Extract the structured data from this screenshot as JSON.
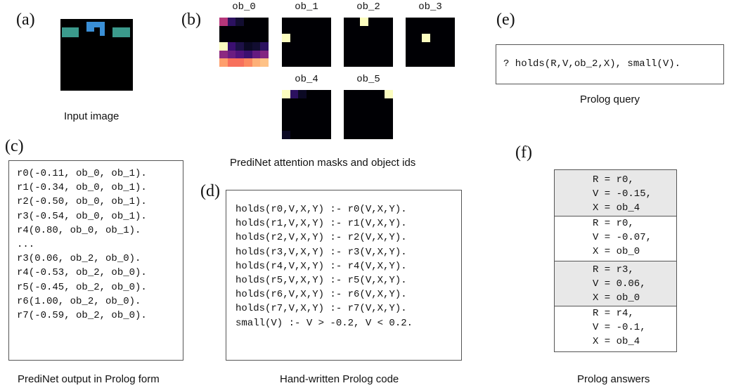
{
  "panels": {
    "a": {
      "label": "(a)",
      "caption": "Input image"
    },
    "b": {
      "label": "(b)",
      "caption": "PrediNet attention masks and object ids",
      "objects": [
        "ob_0",
        "ob_1",
        "ob_2",
        "ob_3",
        "ob_4",
        "ob_5"
      ]
    },
    "c": {
      "label": "(c)",
      "caption": "PrediNet output in Prolog form",
      "lines": [
        "r0(-0.11, ob_0, ob_1).",
        "r1(-0.34, ob_0, ob_1).",
        "r2(-0.50, ob_0, ob_1).",
        "r3(-0.54, ob_0, ob_1).",
        "r4(0.80, ob_0, ob_1).",
        "",
        "...",
        "",
        "r3(0.06, ob_2, ob_0).",
        "r4(-0.53, ob_2, ob_0).",
        "r5(-0.45, ob_2, ob_0).",
        "r6(1.00, ob_2, ob_0).",
        "r7(-0.59, ob_2, ob_0)."
      ]
    },
    "d": {
      "label": "(d)",
      "caption": "Hand-written Prolog code",
      "lines": [
        "holds(r0,V,X,Y) :- r0(V,X,Y).",
        "holds(r1,V,X,Y) :- r1(V,X,Y).",
        "holds(r2,V,X,Y) :- r2(V,X,Y).",
        "holds(r3,V,X,Y) :- r3(V,X,Y).",
        "holds(r4,V,X,Y) :- r4(V,X,Y).",
        "holds(r5,V,X,Y) :- r5(V,X,Y).",
        "holds(r6,V,X,Y) :- r6(V,X,Y).",
        "holds(r7,V,X,Y) :- r7(V,X,Y).",
        "",
        "small(V) :- V > -0.2, V < 0.2."
      ]
    },
    "e": {
      "label": "(e)",
      "caption": "Prolog query",
      "query": "? holds(R,V,ob_2,X), small(V)."
    },
    "f": {
      "label": "(f)",
      "caption": "Prolog answers",
      "answers": [
        {
          "lines": [
            "R = r0,",
            "V = -0.15,",
            "X = ob_4"
          ],
          "shaded": true
        },
        {
          "lines": [
            "R = r0,",
            "V = -0.07,",
            "X = ob_0"
          ],
          "shaded": false
        },
        {
          "lines": [
            "R = r3,",
            "V = 0.06,",
            "X = ob_0"
          ],
          "shaded": true
        },
        {
          "lines": [
            "R = r4,",
            "V = -0.1,",
            "X = ob_4"
          ],
          "shaded": false
        }
      ]
    }
  },
  "colors": {
    "mask_bg": "#000000",
    "highlight": "#fcfdbf",
    "teal": "#3b9a8c",
    "blue": "#3a8fd6",
    "shade": "#e8e8e8"
  }
}
